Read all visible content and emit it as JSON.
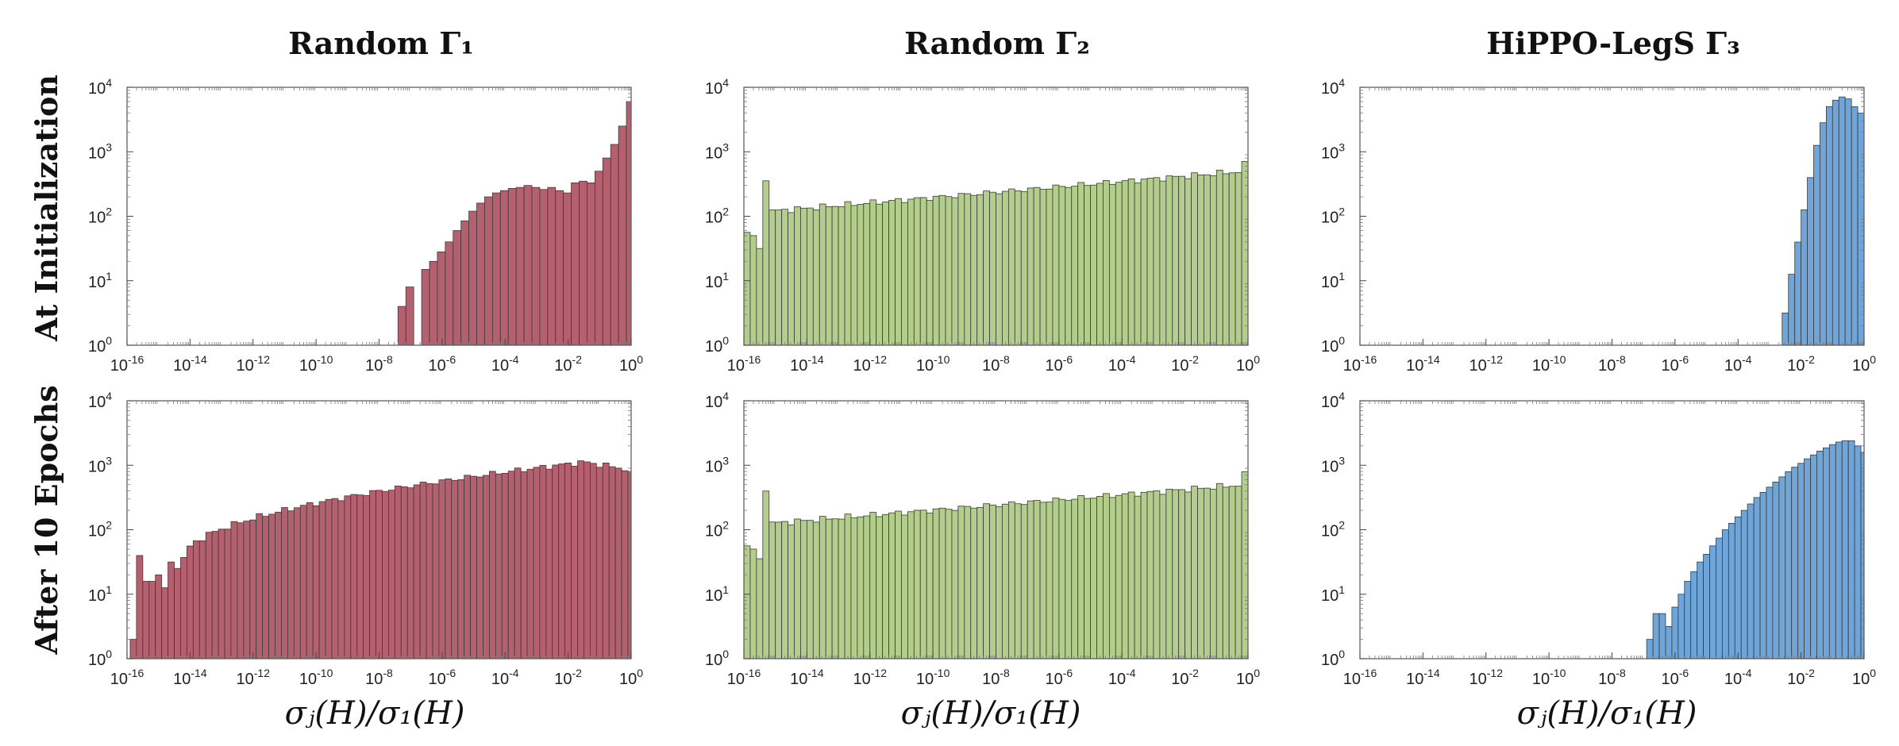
{
  "figure": {
    "column_titles": [
      "Random Γ₁",
      "Random Γ₂",
      "HiPPO-LegS Γ₃"
    ],
    "row_labels": [
      "At Initialization",
      "After 10 Epochs"
    ],
    "xlabel": "σⱼ(H)/σ₁(H)",
    "colors": {
      "red": "#b5606f",
      "green": "#b2cd8c",
      "blue": "#6fa5d8",
      "edge": "#3a3a3a"
    }
  },
  "chart_data": [
    {
      "type": "bar",
      "id": "init-gamma1",
      "row": 0,
      "col": 0,
      "color": "red",
      "x_scale": "log",
      "y_scale": "log",
      "xlim_exp": [
        -16,
        0
      ],
      "ylim_exp": [
        0,
        4
      ],
      "x_ticks_exp": [
        -16,
        -14,
        -12,
        -10,
        -8,
        -6,
        -4,
        -2,
        0
      ],
      "y_ticks_exp": [
        0,
        1,
        2,
        3,
        4
      ],
      "bins": 84,
      "x_start_exp": -16,
      "bin_width_exp": 0.1905,
      "counts": [
        0,
        0,
        0,
        0,
        0,
        0,
        0,
        0,
        0,
        0,
        0,
        0,
        0,
        0,
        0,
        0,
        0,
        0,
        0,
        0,
        0,
        0,
        0,
        0,
        0,
        0,
        0,
        0,
        0,
        0,
        0,
        0,
        0,
        0,
        0,
        0,
        0,
        0,
        0,
        0,
        0,
        0,
        0,
        0,
        0,
        0,
        0,
        0,
        0,
        0,
        0,
        0,
        0,
        0,
        0,
        0,
        0,
        0,
        0,
        0,
        0,
        0,
        0,
        0,
        0,
        0,
        0,
        0,
        0,
        0,
        0,
        0,
        0,
        0,
        0,
        0,
        0,
        0,
        0,
        0,
        0,
        0,
        0,
        0
      ],
      "bars": [
        {
          "x0": -7.4,
          "x1": -7.15,
          "y": 4
        },
        {
          "x0": -7.15,
          "x1": -6.9,
          "y": 8
        },
        {
          "x0": -6.65,
          "x1": -6.4,
          "y": 15
        },
        {
          "x0": -6.4,
          "x1": -6.15,
          "y": 20
        },
        {
          "x0": -6.15,
          "x1": -5.9,
          "y": 28
        },
        {
          "x0": -5.9,
          "x1": -5.65,
          "y": 40
        },
        {
          "x0": -5.65,
          "x1": -5.4,
          "y": 60
        },
        {
          "x0": -5.4,
          "x1": -5.15,
          "y": 85
        },
        {
          "x0": -5.15,
          "x1": -4.9,
          "y": 120
        },
        {
          "x0": -4.9,
          "x1": -4.65,
          "y": 160
        },
        {
          "x0": -4.65,
          "x1": -4.4,
          "y": 200
        },
        {
          "x0": -4.4,
          "x1": -4.15,
          "y": 230
        },
        {
          "x0": -4.15,
          "x1": -3.9,
          "y": 250
        },
        {
          "x0": -3.9,
          "x1": -3.65,
          "y": 270
        },
        {
          "x0": -3.65,
          "x1": -3.4,
          "y": 280
        },
        {
          "x0": -3.4,
          "x1": -3.15,
          "y": 300
        },
        {
          "x0": -3.15,
          "x1": -2.9,
          "y": 280
        },
        {
          "x0": -2.9,
          "x1": -2.65,
          "y": 260
        },
        {
          "x0": -2.65,
          "x1": -2.4,
          "y": 280
        },
        {
          "x0": -2.4,
          "x1": -2.15,
          "y": 250
        },
        {
          "x0": -2.15,
          "x1": -1.9,
          "y": 230
        },
        {
          "x0": -1.9,
          "x1": -1.65,
          "y": 330
        },
        {
          "x0": -1.65,
          "x1": -1.4,
          "y": 350
        },
        {
          "x0": -1.4,
          "x1": -1.15,
          "y": 330
        },
        {
          "x0": -1.15,
          "x1": -0.9,
          "y": 500
        },
        {
          "x0": -0.9,
          "x1": -0.65,
          "y": 800
        },
        {
          "x0": -0.65,
          "x1": -0.4,
          "y": 1300
        },
        {
          "x0": -0.4,
          "x1": -0.15,
          "y": 2500
        },
        {
          "x0": -0.15,
          "x1": 0.0,
          "y": 6000
        }
      ]
    },
    {
      "type": "bar",
      "id": "init-gamma2",
      "row": 0,
      "col": 1,
      "color": "green",
      "x_scale": "log",
      "y_scale": "log",
      "xlim_exp": [
        -16,
        0
      ],
      "ylim_exp": [
        0,
        4
      ],
      "x_ticks_exp": [
        -16,
        -14,
        -12,
        -10,
        -8,
        -6,
        -4,
        -2,
        0
      ],
      "y_ticks_exp": [
        0,
        1,
        2,
        3,
        4
      ],
      "profile": "flat",
      "bars_log": [
        {
          "x0": -16.0,
          "x1": -15.8,
          "ylog": 1.75
        },
        {
          "x0": -15.8,
          "x1": -15.6,
          "ylog": 1.7
        },
        {
          "x0": -15.6,
          "x1": -15.4,
          "ylog": 1.5
        },
        {
          "x0": -15.4,
          "x1": -15.2,
          "ylog": 2.55
        }
      ],
      "trend_log": {
        "x0": -15.2,
        "x1": 0.0,
        "y_start": 2.08,
        "y_end": 2.7,
        "last_bar_log": 2.85,
        "bin_w": 0.2
      }
    },
    {
      "type": "bar",
      "id": "init-gamma3",
      "row": 0,
      "col": 2,
      "color": "blue",
      "x_scale": "log",
      "y_scale": "log",
      "xlim_exp": [
        -16,
        0
      ],
      "ylim_exp": [
        0,
        4
      ],
      "x_ticks_exp": [
        -16,
        -14,
        -12,
        -10,
        -8,
        -6,
        -4,
        -2,
        0
      ],
      "y_ticks_exp": [
        0,
        1,
        2,
        3,
        4
      ],
      "bars_log": [
        {
          "x0": -2.6,
          "x1": -2.4,
          "ylog": 0.5
        },
        {
          "x0": -2.4,
          "x1": -2.2,
          "ylog": 1.1
        },
        {
          "x0": -2.2,
          "x1": -2.0,
          "ylog": 1.6
        },
        {
          "x0": -2.0,
          "x1": -1.8,
          "ylog": 2.1
        },
        {
          "x0": -1.8,
          "x1": -1.6,
          "ylog": 2.6
        },
        {
          "x0": -1.6,
          "x1": -1.4,
          "ylog": 3.1
        },
        {
          "x0": -1.4,
          "x1": -1.2,
          "ylog": 3.45
        },
        {
          "x0": -1.2,
          "x1": -1.0,
          "ylog": 3.7
        },
        {
          "x0": -1.0,
          "x1": -0.8,
          "ylog": 3.8
        },
        {
          "x0": -0.8,
          "x1": -0.6,
          "ylog": 3.85
        },
        {
          "x0": -0.6,
          "x1": -0.4,
          "ylog": 3.82
        },
        {
          "x0": -0.4,
          "x1": -0.2,
          "ylog": 3.7
        },
        {
          "x0": -0.2,
          "x1": 0.0,
          "ylog": 3.6
        }
      ]
    },
    {
      "type": "bar",
      "id": "epoch10-gamma1",
      "row": 1,
      "col": 0,
      "color": "red",
      "x_scale": "log",
      "y_scale": "log",
      "xlim_exp": [
        -16,
        0
      ],
      "ylim_exp": [
        0,
        4
      ],
      "x_ticks_exp": [
        -16,
        -14,
        -12,
        -10,
        -8,
        -6,
        -4,
        -2,
        0
      ],
      "y_ticks_exp": [
        0,
        1,
        2,
        3,
        4
      ],
      "bars_log": [
        {
          "x0": -15.9,
          "x1": -15.7,
          "ylog": 0.3
        },
        {
          "x0": -15.7,
          "x1": -15.5,
          "ylog": 1.6
        },
        {
          "x0": -15.5,
          "x1": -15.3,
          "ylog": 1.2
        },
        {
          "x0": -15.3,
          "x1": -15.1,
          "ylog": 1.2
        },
        {
          "x0": -15.1,
          "x1": -14.9,
          "ylog": 1.3
        },
        {
          "x0": -14.9,
          "x1": -14.7,
          "ylog": 1.1
        },
        {
          "x0": -14.7,
          "x1": -14.5,
          "ylog": 1.5
        },
        {
          "x0": -14.5,
          "x1": -14.3,
          "ylog": 1.4
        }
      ],
      "trend_log": {
        "x0": -14.3,
        "x1": 0.0,
        "y_start": 1.55,
        "y_end": 3.05,
        "peak_x": -1.5,
        "last_bar_log": 2.9,
        "bin_w": 0.2
      }
    },
    {
      "type": "bar",
      "id": "epoch10-gamma2",
      "row": 1,
      "col": 1,
      "color": "green",
      "x_scale": "log",
      "y_scale": "log",
      "xlim_exp": [
        -16,
        0
      ],
      "ylim_exp": [
        0,
        4
      ],
      "x_ticks_exp": [
        -16,
        -14,
        -12,
        -10,
        -8,
        -6,
        -4,
        -2,
        0
      ],
      "y_ticks_exp": [
        0,
        1,
        2,
        3,
        4
      ],
      "bars_log": [
        {
          "x0": -16.0,
          "x1": -15.8,
          "ylog": 1.75
        },
        {
          "x0": -15.8,
          "x1": -15.6,
          "ylog": 1.7
        },
        {
          "x0": -15.6,
          "x1": -15.4,
          "ylog": 1.55
        },
        {
          "x0": -15.4,
          "x1": -15.2,
          "ylog": 2.6
        }
      ],
      "trend_log": {
        "x0": -15.2,
        "x1": 0.0,
        "y_start": 2.1,
        "y_end": 2.7,
        "last_bar_log": 2.9,
        "bin_w": 0.2
      }
    },
    {
      "type": "bar",
      "id": "epoch10-gamma3",
      "row": 1,
      "col": 2,
      "color": "blue",
      "x_scale": "log",
      "y_scale": "log",
      "xlim_exp": [
        -16,
        0
      ],
      "ylim_exp": [
        0,
        4
      ],
      "x_ticks_exp": [
        -16,
        -14,
        -12,
        -10,
        -8,
        -6,
        -4,
        -2,
        0
      ],
      "y_ticks_exp": [
        0,
        1,
        2,
        3,
        4
      ],
      "bars_log": [
        {
          "x0": -6.9,
          "x1": -6.7,
          "ylog": 0.3
        },
        {
          "x0": -6.7,
          "x1": -6.5,
          "ylog": 0.7
        },
        {
          "x0": -6.5,
          "x1": -6.3,
          "ylog": 0.7
        },
        {
          "x0": -6.3,
          "x1": -6.1,
          "ylog": 0.5
        },
        {
          "x0": -6.1,
          "x1": -5.9,
          "ylog": 0.8
        },
        {
          "x0": -5.9,
          "x1": -5.7,
          "ylog": 1.0
        },
        {
          "x0": -5.7,
          "x1": -5.5,
          "ylog": 1.2
        },
        {
          "x0": -5.5,
          "x1": -5.3,
          "ylog": 1.35
        },
        {
          "x0": -5.3,
          "x1": -5.1,
          "ylog": 1.5
        },
        {
          "x0": -5.1,
          "x1": -4.9,
          "ylog": 1.62
        },
        {
          "x0": -4.9,
          "x1": -4.7,
          "ylog": 1.75
        },
        {
          "x0": -4.7,
          "x1": -4.5,
          "ylog": 1.87
        },
        {
          "x0": -4.5,
          "x1": -4.3,
          "ylog": 2.0
        },
        {
          "x0": -4.3,
          "x1": -4.1,
          "ylog": 2.1
        },
        {
          "x0": -4.1,
          "x1": -3.9,
          "ylog": 2.2
        },
        {
          "x0": -3.9,
          "x1": -3.7,
          "ylog": 2.3
        },
        {
          "x0": -3.7,
          "x1": -3.5,
          "ylog": 2.4
        },
        {
          "x0": -3.5,
          "x1": -3.3,
          "ylog": 2.5
        },
        {
          "x0": -3.3,
          "x1": -3.1,
          "ylog": 2.58
        },
        {
          "x0": -3.1,
          "x1": -2.9,
          "ylog": 2.66
        },
        {
          "x0": -2.9,
          "x1": -2.7,
          "ylog": 2.74
        },
        {
          "x0": -2.7,
          "x1": -2.5,
          "ylog": 2.82
        },
        {
          "x0": -2.5,
          "x1": -2.3,
          "ylog": 2.9
        },
        {
          "x0": -2.3,
          "x1": -2.1,
          "ylog": 2.97
        },
        {
          "x0": -2.1,
          "x1": -1.9,
          "ylog": 3.03
        },
        {
          "x0": -1.9,
          "x1": -1.7,
          "ylog": 3.1
        },
        {
          "x0": -1.7,
          "x1": -1.5,
          "ylog": 3.16
        },
        {
          "x0": -1.5,
          "x1": -1.3,
          "ylog": 3.22
        },
        {
          "x0": -1.3,
          "x1": -1.1,
          "ylog": 3.27
        },
        {
          "x0": -1.1,
          "x1": -0.9,
          "ylog": 3.32
        },
        {
          "x0": -0.9,
          "x1": -0.7,
          "ylog": 3.36
        },
        {
          "x0": -0.7,
          "x1": -0.5,
          "ylog": 3.38
        },
        {
          "x0": -0.5,
          "x1": -0.3,
          "ylog": 3.38
        },
        {
          "x0": -0.3,
          "x1": -0.1,
          "ylog": 3.3
        },
        {
          "x0": -0.1,
          "x1": 0.0,
          "ylog": 3.2
        }
      ]
    }
  ]
}
